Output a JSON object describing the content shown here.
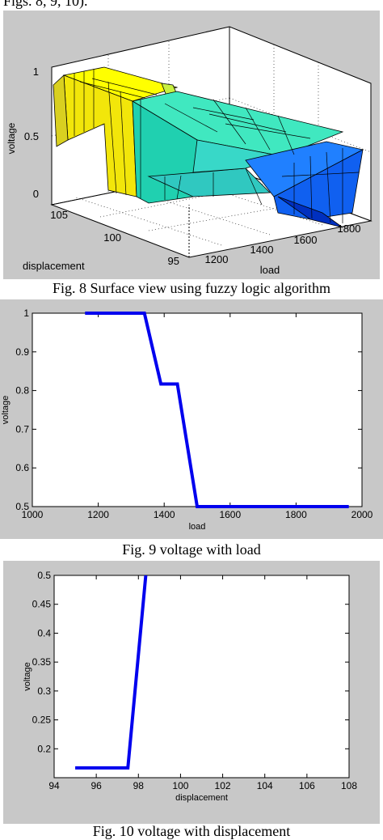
{
  "header_text": "Figs. 8, 9, 10).",
  "colors": {
    "line": "#0000ee",
    "panel_bg": "#c8c8c8",
    "plot_bg": "#ffffff"
  },
  "captions": {
    "fig8": "Fig. 8 Surface view using fuzzy logic algorithm",
    "fig9": "Fig. 9 voltage with load",
    "fig10": "Fig. 10 voltage with displacement"
  },
  "chart_data": [
    {
      "type": "surface",
      "zlabel": "voltage",
      "xlabel": "load",
      "ylabel": "displacement",
      "zlim": [
        0,
        1
      ],
      "z_ticks": [
        "0",
        "0.5",
        "1"
      ],
      "x_ticks": [
        "1200",
        "1400",
        "1600",
        "1800"
      ],
      "y_ticks": [
        "105",
        "100",
        "95"
      ],
      "colormap": "jet"
    },
    {
      "type": "line",
      "xlabel": "load",
      "ylabel": "voltage",
      "xlim": [
        1000,
        2000
      ],
      "ylim": [
        0.5,
        1
      ],
      "x_ticks": [
        "1000",
        "1200",
        "1400",
        "1600",
        "1800",
        "2000"
      ],
      "y_ticks": [
        "0.5",
        "0.6",
        "0.7",
        "0.8",
        "0.9",
        "1"
      ],
      "x": [
        1160,
        1340,
        1390,
        1440,
        1500,
        1960
      ],
      "y": [
        1.0,
        1.0,
        0.817,
        0.817,
        0.5,
        0.5
      ]
    },
    {
      "type": "line",
      "xlabel": "displacement",
      "ylabel": "voltage",
      "xlim": [
        94,
        108
      ],
      "ylim": [
        0.15,
        0.5
      ],
      "x_ticks": [
        "94",
        "96",
        "98",
        "100",
        "102",
        "104",
        "106",
        "108"
      ],
      "y_ticks": [
        "0.2",
        "0.25",
        "0.3",
        "0.35",
        "0.4",
        "0.45",
        "0.5"
      ],
      "x": [
        95,
        97.5,
        98.35
      ],
      "y": [
        0.167,
        0.167,
        0.5
      ]
    }
  ]
}
